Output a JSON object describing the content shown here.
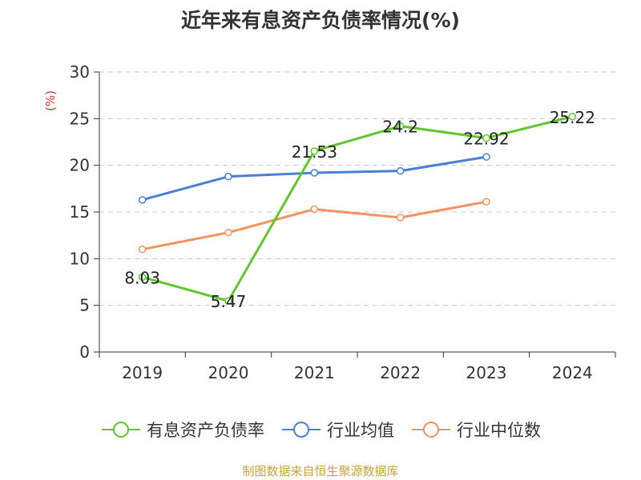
{
  "footer": "制图数据来自恒生聚源数据库",
  "chart_data": {
    "type": "line",
    "title": "近年来有息资产负债率情况(%)",
    "ylabel": "(%)",
    "xlabel": "",
    "categories": [
      "2019",
      "2020",
      "2021",
      "2022",
      "2023",
      "2024"
    ],
    "ylim": [
      0,
      30
    ],
    "yticks": [
      0,
      5,
      10,
      15,
      20,
      25,
      30
    ],
    "grid": true,
    "legend_position": "bottom",
    "series": [
      {
        "name": "有息资产负债率",
        "color": "#5ec72a",
        "values": [
          8.03,
          5.47,
          21.53,
          24.2,
          22.92,
          25.22
        ],
        "labels": [
          "8.03",
          "5.47",
          "21.53",
          "24.2",
          "22.92",
          "25.22"
        ]
      },
      {
        "name": "行业均值",
        "color": "#4a7fd4",
        "values": [
          16.3,
          18.8,
          19.2,
          19.4,
          20.9,
          null
        ]
      },
      {
        "name": "行业中位数",
        "color": "#f5935f",
        "values": [
          11.0,
          12.8,
          15.3,
          14.4,
          16.1,
          null
        ]
      }
    ]
  }
}
